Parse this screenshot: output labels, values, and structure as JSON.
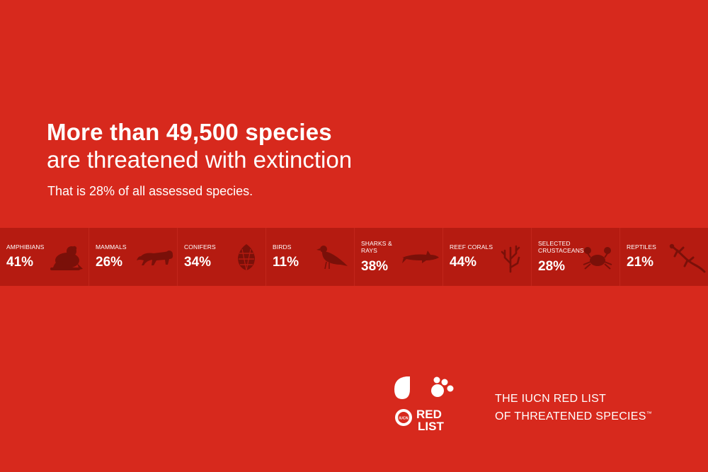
{
  "headline": {
    "bold": "More than 49,500 species",
    "line2": "are threatened with extinction",
    "sub": "That is 28% of all assessed species."
  },
  "groups": [
    {
      "label": "AMPHIBIANS",
      "percent": "41%",
      "icon": "frog-icon"
    },
    {
      "label": "MAMMALS",
      "percent": "26%",
      "icon": "tiger-icon"
    },
    {
      "label": "CONIFERS",
      "percent": "34%",
      "icon": "pinecone-icon"
    },
    {
      "label": "BIRDS",
      "percent": "11%",
      "icon": "bird-icon"
    },
    {
      "label": "SHARKS & RAYS",
      "percent": "38%",
      "icon": "shark-icon"
    },
    {
      "label": "REEF CORALS",
      "percent": "44%",
      "icon": "coral-icon"
    },
    {
      "label": "SELECTED CRUSTACEANS",
      "percent": "28%",
      "icon": "crab-icon"
    },
    {
      "label": "REPTILES",
      "percent": "21%",
      "icon": "lizard-icon"
    }
  ],
  "brand": {
    "logo_text_1": "RED",
    "logo_text_2": "LIST",
    "logo_badge": "IUCN",
    "line1": "THE IUCN RED LIST",
    "line2": "OF THREATENED SPECIES",
    "trademark": "™"
  },
  "colors": {
    "background": "#d7291d",
    "band": "#b51b11",
    "icon": "#7a1009"
  }
}
